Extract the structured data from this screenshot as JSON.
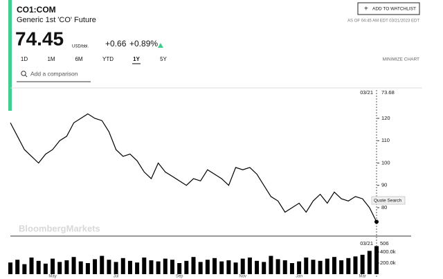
{
  "header": {
    "symbol": "CO1:COM",
    "name": "Generic 1st 'CO' Future",
    "price": "74.45",
    "unit": "USD/bbl.",
    "change": "+0.66",
    "change_pct": "+0.89%",
    "watchlist": "ADD TO WATCHLIST",
    "as_of": "AS OF 04:45 AM EDT 03/21/2023 EDT"
  },
  "toolbar": {
    "ranges": [
      "1D",
      "1M",
      "6M",
      "YTD",
      "1Y",
      "5Y"
    ],
    "selected": 4,
    "minimize": "MINIMIZE CHART",
    "comparison": "Add a comparison"
  },
  "watermark": "BloombergMarkets",
  "tooltip": "Quote Search",
  "chart_data": [
    {
      "type": "line",
      "last_date": "03/21",
      "categories": [
        null,
        null,
        null,
        null,
        null,
        null,
        "May",
        null,
        null,
        null,
        null,
        null,
        null,
        null,
        null,
        "Jul",
        null,
        null,
        null,
        null,
        null,
        null,
        null,
        null,
        "Sep",
        null,
        null,
        null,
        null,
        null,
        null,
        null,
        null,
        "Nov",
        null,
        null,
        null,
        null,
        null,
        null,
        null,
        "Jan",
        null,
        null,
        null,
        null,
        null,
        null,
        null,
        null,
        "Mar",
        null,
        null
      ],
      "series": [
        {
          "name": "CO1:COM",
          "color": "#000000",
          "values": [
            118,
            112,
            106,
            103,
            100,
            104,
            106,
            110,
            112,
            118,
            120,
            122,
            120,
            119,
            114,
            106,
            103,
            104,
            101,
            96,
            93,
            100,
            96,
            94,
            92,
            90,
            93,
            92,
            97,
            95,
            93,
            90,
            98,
            97,
            98,
            95,
            90,
            85,
            83,
            78,
            80,
            82,
            78,
            83,
            86,
            82,
            87,
            84,
            83,
            85,
            84,
            80,
            73.68
          ]
        }
      ],
      "ylim": [
        67.6,
        132.7
      ],
      "yticks": [
        80,
        90,
        100,
        110,
        120
      ]
    },
    {
      "type": "bar",
      "last_date": "03/21",
      "color": "#000000",
      "values": [
        210,
        260,
        180,
        300,
        240,
        190,
        280,
        220,
        250,
        310,
        230,
        200,
        270,
        330,
        260,
        220,
        290,
        240,
        210,
        300,
        250,
        230,
        280,
        260,
        200,
        240,
        310,
        220,
        260,
        290,
        230,
        250,
        210,
        280,
        300,
        240,
        220,
        330,
        270,
        250,
        200,
        230,
        300,
        260,
        240,
        280,
        310,
        250,
        290,
        320,
        350,
        420,
        506
      ],
      "ylim": [
        0,
        637.5
      ],
      "yticks": [
        {
          "value": 200,
          "label": "200.0k"
        },
        {
          "value": 400,
          "label": "400.0k"
        }
      ]
    }
  ]
}
